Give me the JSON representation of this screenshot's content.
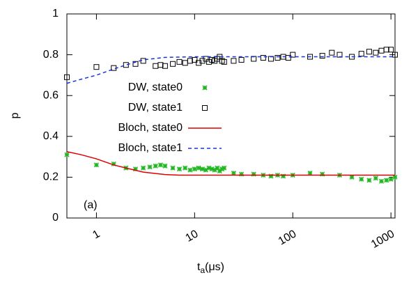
{
  "chart_data": {
    "type": "scatter",
    "y_label": "p",
    "x_label": "t",
    "x_label_sub": "a",
    "x_label_unit": "(μs)",
    "annotation": "(a)",
    "log_x": true,
    "xlim": [
      0.5,
      1100
    ],
    "xticks": [
      1,
      10,
      100,
      1000
    ],
    "ylim": [
      0,
      1
    ],
    "yticks": [
      0,
      0.2,
      0.4,
      0.6,
      0.8,
      1
    ],
    "legend": "upper left",
    "series": [
      {
        "name": "DW, state0",
        "kind": "points",
        "marker": "star",
        "color": "#22b722",
        "x": [
          0.5,
          1,
          1.5,
          2,
          2.5,
          3,
          3.5,
          4,
          4.5,
          5,
          6,
          7,
          8,
          9,
          10,
          11,
          12,
          13,
          14,
          15,
          16,
          17,
          18,
          19,
          20,
          25,
          30,
          40,
          50,
          60,
          70,
          80,
          100,
          150,
          200,
          300,
          400,
          500,
          600,
          700,
          800,
          900,
          1000,
          1100
        ],
        "values": [
          0.31,
          0.26,
          0.265,
          0.245,
          0.24,
          0.245,
          0.25,
          0.255,
          0.26,
          0.255,
          0.245,
          0.24,
          0.245,
          0.235,
          0.24,
          0.245,
          0.24,
          0.235,
          0.245,
          0.24,
          0.235,
          0.245,
          0.23,
          0.24,
          0.245,
          0.22,
          0.215,
          0.215,
          0.21,
          0.205,
          0.21,
          0.205,
          0.21,
          0.22,
          0.215,
          0.21,
          0.2,
          0.19,
          0.185,
          0.195,
          0.18,
          0.185,
          0.19,
          0.2
        ]
      },
      {
        "name": "DW, state1",
        "kind": "points",
        "marker": "square",
        "color": "#000000",
        "x": [
          0.5,
          1,
          1.5,
          2,
          2.5,
          3,
          4,
          4.5,
          5,
          6,
          7,
          8,
          9,
          10,
          11,
          12,
          13,
          14,
          15,
          16,
          17,
          18,
          19,
          20,
          25,
          30,
          40,
          50,
          60,
          70,
          80,
          90,
          100,
          150,
          200,
          250,
          300,
          400,
          500,
          600,
          700,
          800,
          900,
          1000,
          1100
        ],
        "values": [
          0.69,
          0.74,
          0.735,
          0.75,
          0.755,
          0.77,
          0.745,
          0.75,
          0.745,
          0.755,
          0.765,
          0.76,
          0.77,
          0.775,
          0.76,
          0.77,
          0.78,
          0.765,
          0.775,
          0.77,
          0.78,
          0.79,
          0.77,
          0.765,
          0.77,
          0.775,
          0.78,
          0.785,
          0.78,
          0.785,
          0.79,
          0.785,
          0.8,
          0.79,
          0.795,
          0.81,
          0.8,
          0.79,
          0.805,
          0.815,
          0.81,
          0.82,
          0.825,
          0.825,
          0.8
        ]
      },
      {
        "name": "Bloch, state0",
        "kind": "line",
        "dash": false,
        "color": "#e00000",
        "x": [
          0.5,
          0.7,
          1,
          1.5,
          2,
          3,
          5,
          7,
          10,
          100,
          1100
        ],
        "values": [
          0.325,
          0.31,
          0.29,
          0.26,
          0.245,
          0.225,
          0.213,
          0.21,
          0.21,
          0.21,
          0.21
        ]
      },
      {
        "name": "Bloch, state1",
        "kind": "line",
        "dash": true,
        "color": "#1a33d6",
        "x": [
          0.5,
          0.7,
          1,
          1.5,
          2,
          3,
          5,
          10,
          30,
          100,
          1100
        ],
        "values": [
          0.66,
          0.68,
          0.7,
          0.73,
          0.75,
          0.775,
          0.787,
          0.79,
          0.79,
          0.79,
          0.79
        ]
      }
    ]
  }
}
